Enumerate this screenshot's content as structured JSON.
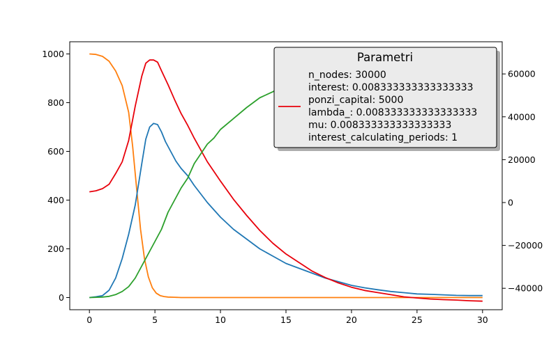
{
  "chart_data": {
    "type": "line",
    "title": "",
    "xlabel": "",
    "ylabel": "",
    "y2label": "",
    "grid": false,
    "legend_placement": "top-right",
    "xlim": [
      -1.5,
      31.5
    ],
    "ylim": [
      -50,
      1050
    ],
    "y2lim": [
      -50000,
      75000
    ],
    "xticks": [
      0,
      5,
      10,
      15,
      20,
      25,
      30
    ],
    "yticks": [
      0,
      200,
      400,
      600,
      800,
      1000
    ],
    "y2ticks": [
      -40000,
      -20000,
      0,
      20000,
      40000,
      60000
    ],
    "legend": {
      "title": "Parametri",
      "entries": [
        {
          "color": "#e8000b",
          "lines": [
            "n_nodes: 30000",
            "interest: 0.008333333333333333",
            "ponzi_capital: 5000",
            "lambda_: 0.008333333333333333",
            "mu: 0.008333333333333333",
            "interest_calculating_periods: 1"
          ]
        }
      ]
    },
    "series": [
      {
        "color": "#ff7f0e",
        "axis": "left",
        "x": [
          0,
          0.5,
          1,
          1.5,
          2,
          2.5,
          3,
          3.3,
          3.6,
          3.9,
          4.2,
          4.5,
          4.8,
          5.1,
          5.4,
          5.7,
          6,
          6.5,
          7,
          8,
          10,
          15,
          20,
          25,
          30
        ],
        "y": [
          1000,
          998,
          990,
          970,
          930,
          870,
          760,
          620,
          450,
          280,
          160,
          85,
          40,
          18,
          8,
          4,
          2,
          1,
          0,
          0,
          0,
          0,
          0,
          0,
          0
        ]
      },
      {
        "color": "#1f77b4",
        "axis": "left",
        "x": [
          0,
          0.5,
          1,
          1.5,
          2,
          2.5,
          3,
          3.5,
          4,
          4.3,
          4.6,
          4.9,
          5.2,
          5.5,
          5.8,
          6.2,
          6.6,
          7,
          7.5,
          8,
          9,
          10,
          11,
          12,
          13,
          14,
          15,
          16,
          17,
          18,
          19,
          20,
          21,
          22,
          23,
          24,
          25,
          26,
          27,
          28,
          29,
          30
        ],
        "y": [
          0,
          3,
          8,
          30,
          80,
          160,
          260,
          380,
          550,
          650,
          700,
          715,
          710,
          680,
          640,
          600,
          560,
          530,
          500,
          460,
          390,
          330,
          280,
          240,
          200,
          170,
          140,
          120,
          100,
          80,
          65,
          50,
          40,
          32,
          25,
          20,
          15,
          13,
          11,
          9,
          8,
          8
        ]
      },
      {
        "color": "#e8000b",
        "axis": "right",
        "x": [
          0,
          0.5,
          1,
          1.5,
          2,
          2.5,
          3,
          3.5,
          4,
          4.3,
          4.6,
          4.9,
          5.2,
          5.5,
          6,
          6.5,
          7,
          7.5,
          8,
          9,
          10,
          11,
          12,
          13,
          14,
          15,
          16,
          17,
          18,
          19,
          20,
          21,
          22,
          23,
          24,
          25,
          26,
          27,
          28,
          29,
          30
        ],
        "y": [
          5000,
          5500,
          6500,
          8500,
          13500,
          19000,
          29000,
          45000,
          59000,
          65000,
          66500,
          66500,
          65500,
          61500,
          55000,
          48000,
          41500,
          36000,
          30000,
          19000,
          10000,
          1500,
          -6000,
          -13000,
          -19000,
          -24000,
          -28000,
          -32000,
          -35000,
          -37500,
          -39500,
          -41000,
          -42000,
          -43000,
          -44000,
          -44500,
          -45000,
          -45300,
          -45500,
          -45800,
          -46000
        ]
      },
      {
        "color": "#2ca02c",
        "axis": "left",
        "x": [
          0,
          1,
          1.5,
          2,
          2.5,
          3,
          3.5,
          4,
          4.5,
          5,
          5.5,
          6,
          6.5,
          7,
          7.5,
          8,
          8.5,
          9,
          9.5,
          10,
          11,
          12,
          13,
          14,
          15,
          16,
          17,
          18,
          19,
          20,
          21,
          22,
          23,
          24,
          25,
          26,
          27,
          28,
          29,
          30
        ],
        "y": [
          0,
          2,
          5,
          12,
          25,
          45,
          80,
          130,
          180,
          230,
          280,
          350,
          400,
          450,
          490,
          550,
          590,
          630,
          655,
          690,
          735,
          780,
          820,
          845,
          875,
          895,
          920,
          940,
          955,
          965,
          972,
          978,
          982,
          985,
          988,
          990,
          991,
          992,
          993,
          993
        ]
      }
    ]
  }
}
